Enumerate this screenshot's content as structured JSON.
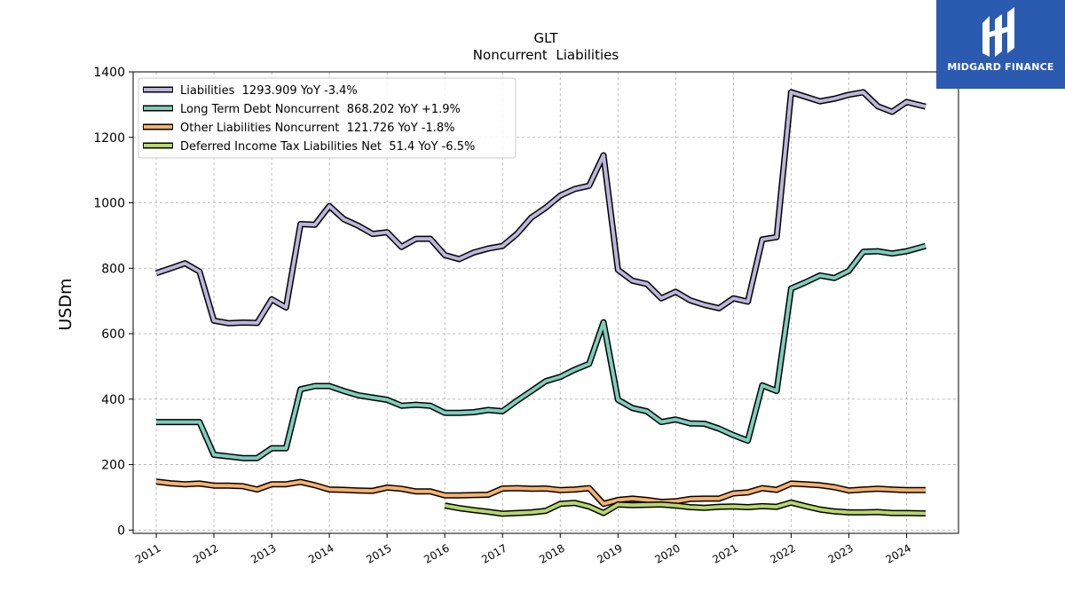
{
  "chart_data": {
    "type": "line",
    "title": "GLT",
    "subtitle": "Noncurrent  Liabilities",
    "ylabel": "USDm",
    "xlabel": "",
    "ylim": [
      -10,
      1400
    ],
    "xlim": [
      2010.6,
      2024.9
    ],
    "yticks": [
      0,
      200,
      400,
      600,
      800,
      1000,
      1200,
      1400
    ],
    "xticks": [
      2011,
      2012,
      2013,
      2014,
      2015,
      2016,
      2017,
      2018,
      2019,
      2020,
      2021,
      2022,
      2023,
      2024
    ],
    "grid": true,
    "legend_position": "top-left",
    "series": [
      {
        "name": "Liabilities  1293.909 YoY -3.4%",
        "color": "#bcb6da",
        "points": [
          [
            2011.0,
            785
          ],
          [
            2011.25,
            800
          ],
          [
            2011.5,
            815
          ],
          [
            2011.75,
            790
          ],
          [
            2012.0,
            640
          ],
          [
            2012.25,
            632
          ],
          [
            2012.5,
            634
          ],
          [
            2012.75,
            633
          ],
          [
            2013.0,
            705
          ],
          [
            2013.25,
            680
          ],
          [
            2013.5,
            935
          ],
          [
            2013.75,
            933
          ],
          [
            2014.0,
            990
          ],
          [
            2014.25,
            950
          ],
          [
            2014.5,
            930
          ],
          [
            2014.75,
            905
          ],
          [
            2015.0,
            910
          ],
          [
            2015.25,
            865
          ],
          [
            2015.5,
            890
          ],
          [
            2015.75,
            890
          ],
          [
            2016.0,
            840
          ],
          [
            2016.25,
            828
          ],
          [
            2016.5,
            848
          ],
          [
            2016.75,
            860
          ],
          [
            2017.0,
            868
          ],
          [
            2017.25,
            905
          ],
          [
            2017.5,
            955
          ],
          [
            2017.75,
            985
          ],
          [
            2018.0,
            1022
          ],
          [
            2018.25,
            1042
          ],
          [
            2018.5,
            1052
          ],
          [
            2018.75,
            1145
          ],
          [
            2019.0,
            795
          ],
          [
            2019.25,
            762
          ],
          [
            2019.5,
            752
          ],
          [
            2019.75,
            708
          ],
          [
            2020.0,
            728
          ],
          [
            2020.25,
            702
          ],
          [
            2020.5,
            688
          ],
          [
            2020.75,
            678
          ],
          [
            2021.0,
            708
          ],
          [
            2021.25,
            698
          ],
          [
            2021.5,
            888
          ],
          [
            2021.75,
            895
          ],
          [
            2022.0,
            1338
          ],
          [
            2022.25,
            1324
          ],
          [
            2022.5,
            1310
          ],
          [
            2022.75,
            1318
          ],
          [
            2023.0,
            1330
          ],
          [
            2023.25,
            1338
          ],
          [
            2023.5,
            1295
          ],
          [
            2023.75,
            1278
          ],
          [
            2024.0,
            1308
          ],
          [
            2024.33,
            1294
          ]
        ]
      },
      {
        "name": "Long Term Debt Noncurrent  868.202 YoY +1.9%",
        "color": "#7ecdbb",
        "points": [
          [
            2011.0,
            330
          ],
          [
            2011.25,
            330
          ],
          [
            2011.5,
            330
          ],
          [
            2011.75,
            330
          ],
          [
            2012.0,
            230
          ],
          [
            2012.25,
            225
          ],
          [
            2012.5,
            220
          ],
          [
            2012.75,
            220
          ],
          [
            2013.0,
            250
          ],
          [
            2013.25,
            250
          ],
          [
            2013.5,
            430
          ],
          [
            2013.75,
            440
          ],
          [
            2014.0,
            440
          ],
          [
            2014.25,
            425
          ],
          [
            2014.5,
            412
          ],
          [
            2014.75,
            405
          ],
          [
            2015.0,
            398
          ],
          [
            2015.25,
            380
          ],
          [
            2015.5,
            383
          ],
          [
            2015.75,
            380
          ],
          [
            2016.0,
            358
          ],
          [
            2016.25,
            358
          ],
          [
            2016.5,
            360
          ],
          [
            2016.75,
            367
          ],
          [
            2017.0,
            363
          ],
          [
            2017.25,
            395
          ],
          [
            2017.5,
            425
          ],
          [
            2017.75,
            455
          ],
          [
            2018.0,
            468
          ],
          [
            2018.25,
            490
          ],
          [
            2018.5,
            508
          ],
          [
            2018.75,
            635
          ],
          [
            2019.0,
            398
          ],
          [
            2019.25,
            373
          ],
          [
            2019.5,
            363
          ],
          [
            2019.75,
            330
          ],
          [
            2020.0,
            338
          ],
          [
            2020.25,
            326
          ],
          [
            2020.5,
            325
          ],
          [
            2020.75,
            310
          ],
          [
            2021.0,
            290
          ],
          [
            2021.25,
            273
          ],
          [
            2021.5,
            442
          ],
          [
            2021.75,
            425
          ],
          [
            2022.0,
            738
          ],
          [
            2022.25,
            757
          ],
          [
            2022.5,
            778
          ],
          [
            2022.75,
            770
          ],
          [
            2023.0,
            792
          ],
          [
            2023.25,
            850
          ],
          [
            2023.5,
            852
          ],
          [
            2023.75,
            845
          ],
          [
            2024.0,
            852
          ],
          [
            2024.33,
            868
          ]
        ]
      },
      {
        "name": "Other Liabilities Noncurrent  121.726 YoY -1.8%",
        "color": "#f7b26d",
        "points": [
          [
            2011.0,
            148
          ],
          [
            2011.25,
            143
          ],
          [
            2011.5,
            140
          ],
          [
            2011.75,
            142
          ],
          [
            2012.0,
            136
          ],
          [
            2012.25,
            136
          ],
          [
            2012.5,
            134
          ],
          [
            2012.75,
            124
          ],
          [
            2013.0,
            140
          ],
          [
            2013.25,
            140
          ],
          [
            2013.5,
            147
          ],
          [
            2013.75,
            137
          ],
          [
            2014.0,
            124
          ],
          [
            2014.25,
            123
          ],
          [
            2014.5,
            121
          ],
          [
            2014.75,
            120
          ],
          [
            2015.0,
            130
          ],
          [
            2015.25,
            126
          ],
          [
            2015.5,
            118
          ],
          [
            2015.75,
            118
          ],
          [
            2016.0,
            106
          ],
          [
            2016.25,
            106
          ],
          [
            2016.5,
            107
          ],
          [
            2016.75,
            108
          ],
          [
            2017.0,
            127
          ],
          [
            2017.25,
            128
          ],
          [
            2017.5,
            126
          ],
          [
            2017.75,
            127
          ],
          [
            2018.0,
            122
          ],
          [
            2018.25,
            124
          ],
          [
            2018.5,
            128
          ],
          [
            2018.75,
            80
          ],
          [
            2019.0,
            92
          ],
          [
            2019.25,
            96
          ],
          [
            2019.5,
            92
          ],
          [
            2019.75,
            86
          ],
          [
            2020.0,
            88
          ],
          [
            2020.25,
            95
          ],
          [
            2020.5,
            96
          ],
          [
            2020.75,
            96
          ],
          [
            2021.0,
            112
          ],
          [
            2021.25,
            115
          ],
          [
            2021.5,
            128
          ],
          [
            2021.75,
            123
          ],
          [
            2022.0,
            142
          ],
          [
            2022.25,
            140
          ],
          [
            2022.5,
            137
          ],
          [
            2022.75,
            131
          ],
          [
            2023.0,
            121
          ],
          [
            2023.25,
            124
          ],
          [
            2023.5,
            126
          ],
          [
            2023.75,
            124
          ],
          [
            2024.0,
            122
          ],
          [
            2024.33,
            122
          ]
        ]
      },
      {
        "name": "Deferred Income Tax Liabilities Net  51.4 YoY -6.5%",
        "color": "#b5d86b",
        "points": [
          [
            2016.0,
            75
          ],
          [
            2016.25,
            67
          ],
          [
            2016.5,
            61
          ],
          [
            2016.75,
            56
          ],
          [
            2017.0,
            50
          ],
          [
            2017.25,
            52
          ],
          [
            2017.5,
            54
          ],
          [
            2017.75,
            59
          ],
          [
            2018.0,
            80
          ],
          [
            2018.25,
            83
          ],
          [
            2018.5,
            72
          ],
          [
            2018.75,
            52
          ],
          [
            2019.0,
            78
          ],
          [
            2019.25,
            76
          ],
          [
            2019.5,
            77
          ],
          [
            2019.75,
            78
          ],
          [
            2020.0,
            75
          ],
          [
            2020.25,
            70
          ],
          [
            2020.5,
            68
          ],
          [
            2020.75,
            71
          ],
          [
            2021.0,
            72
          ],
          [
            2021.25,
            70
          ],
          [
            2021.5,
            73
          ],
          [
            2021.75,
            71
          ],
          [
            2022.0,
            84
          ],
          [
            2022.25,
            73
          ],
          [
            2022.5,
            63
          ],
          [
            2022.75,
            57
          ],
          [
            2023.0,
            54
          ],
          [
            2023.25,
            54
          ],
          [
            2023.5,
            55
          ],
          [
            2023.75,
            52
          ],
          [
            2024.0,
            52
          ],
          [
            2024.33,
            51
          ]
        ]
      }
    ]
  },
  "logo": {
    "text": "MIDGARD FINANCE",
    "bg_color": "#2a5bb0"
  }
}
